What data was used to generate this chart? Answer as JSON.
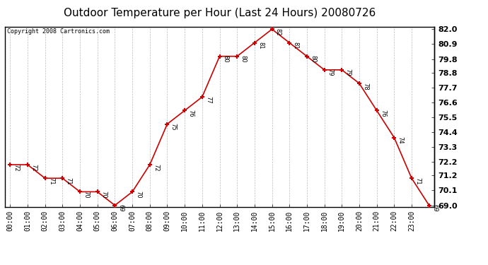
{
  "title": "Outdoor Temperature per Hour (Last 24 Hours) 20080726",
  "copyright_text": "Copyright 2008 Cartronics.com",
  "hours": [
    "00:00",
    "01:00",
    "02:00",
    "03:00",
    "04:00",
    "05:00",
    "06:00",
    "07:00",
    "08:00",
    "09:00",
    "10:00",
    "11:00",
    "12:00",
    "13:00",
    "14:00",
    "15:00",
    "16:00",
    "17:00",
    "18:00",
    "19:00",
    "20:00",
    "21:00",
    "22:00",
    "23:00"
  ],
  "x_vals": [
    0,
    1,
    2,
    3,
    4,
    5,
    6,
    7,
    8,
    9,
    10,
    11,
    12,
    13,
    14,
    15,
    16,
    17,
    18,
    19,
    20,
    21,
    22,
    23,
    24
  ],
  "temps": [
    72,
    72,
    71,
    71,
    70,
    70,
    69,
    70,
    72,
    75,
    76,
    77,
    80,
    80,
    81,
    82,
    81,
    80,
    79,
    79,
    78,
    76,
    74,
    71,
    69
  ],
  "line_color": "#cc0000",
  "marker_color": "#cc0000",
  "background_color": "#ffffff",
  "plot_bg_color": "#ffffff",
  "grid_color": "#bbbbbb",
  "title_fontsize": 11,
  "copyright_fontsize": 6,
  "label_fontsize": 6,
  "tick_fontsize": 7,
  "ytick_fontsize": 8,
  "ylim_min": 68.9,
  "ylim_max": 82.2,
  "ytick_values": [
    69.0,
    70.1,
    71.2,
    72.2,
    73.3,
    74.4,
    75.5,
    76.6,
    77.7,
    78.8,
    79.8,
    80.9,
    82.0
  ]
}
